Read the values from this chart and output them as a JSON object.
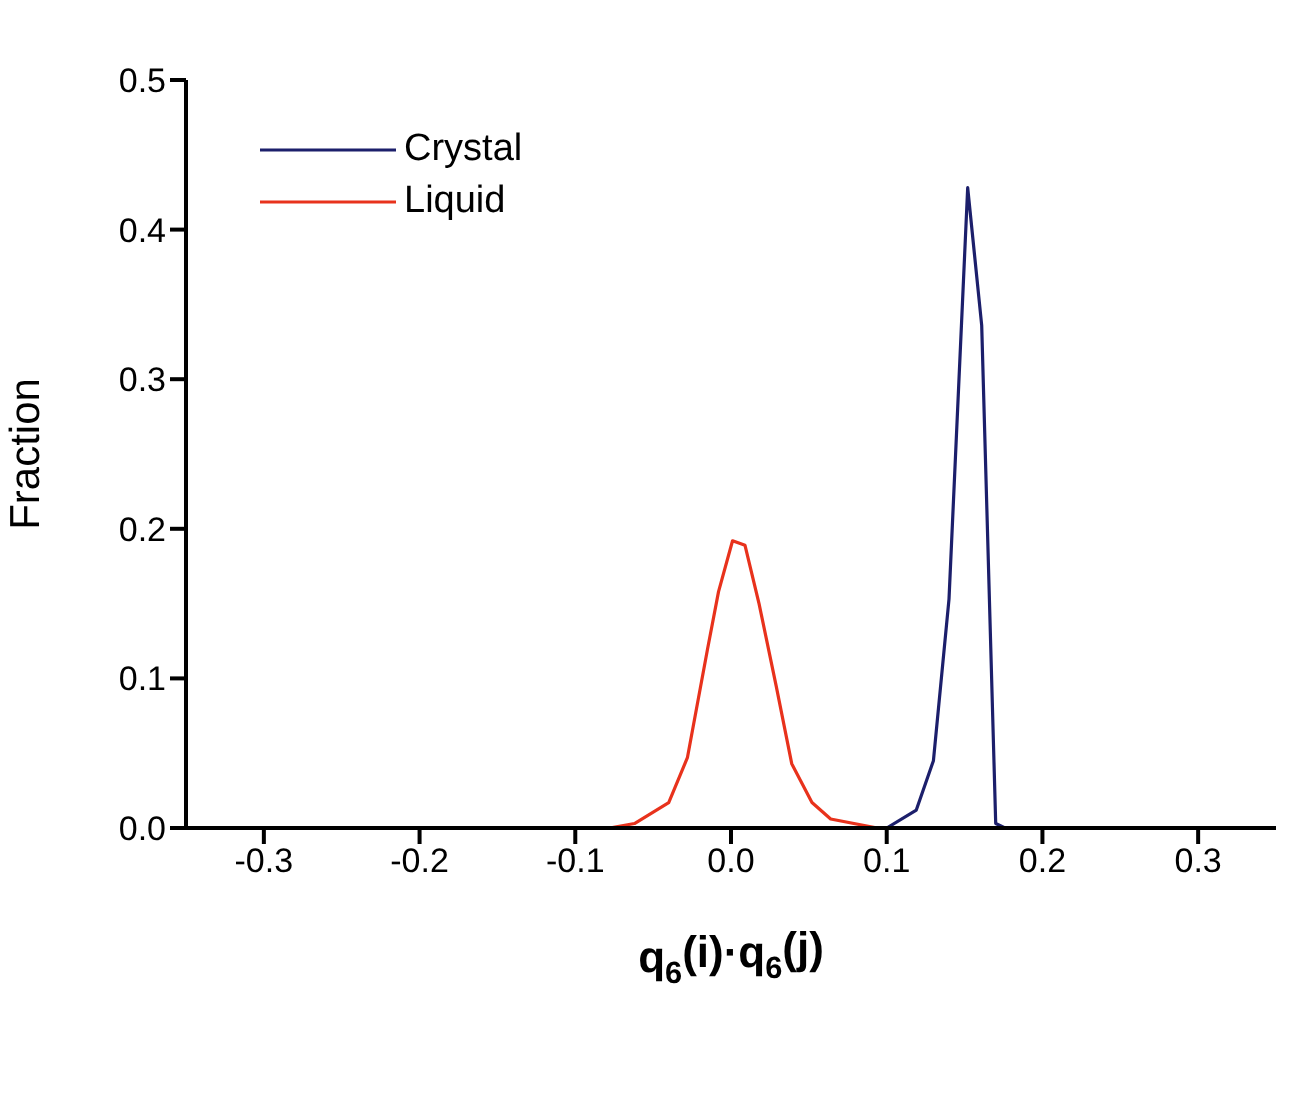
{
  "chart_data": {
    "type": "line",
    "xlabel": "q$_{6}$(i)·q$_{6}$(j)",
    "ylabel": "Fraction",
    "xlim": [
      -0.35,
      0.35
    ],
    "xticks": [
      {
        "value": -0.3,
        "label": "-0.3"
      },
      {
        "value": -0.2,
        "label": "-0.2"
      },
      {
        "value": -0.1,
        "label": "-0.1"
      },
      {
        "value": 0,
        "label": "0.0"
      },
      {
        "value": 0.1,
        "label": "0.1"
      },
      {
        "value": 0.2,
        "label": "0.2"
      },
      {
        "value": 0.3,
        "label": "0.3"
      }
    ],
    "ylim": [
      0,
      0.5
    ],
    "yticks": [
      {
        "value": 0,
        "label": "0.0"
      },
      {
        "value": 0.1,
        "label": "0.1"
      },
      {
        "value": 0.2,
        "label": "0.2"
      },
      {
        "value": 0.3,
        "label": "0.3"
      },
      {
        "value": 0.4,
        "label": "0.4"
      },
      {
        "value": 0.5,
        "label": "0.5"
      }
    ],
    "legend": "top left",
    "grid": false,
    "marker": "none",
    "line_style": "solid",
    "series": [
      {
        "name": "Crystal",
        "color": "#1c1f6b",
        "x": [
          0.1,
          0.119,
          0.13,
          0.14,
          0.152,
          0.161,
          0.17,
          0.176
        ],
        "values": [
          0,
          0.012,
          0.045,
          0.153,
          0.428,
          0.336,
          0.003,
          0
        ]
      },
      {
        "name": "Liquid",
        "color": "#e8321c",
        "x": [
          -0.078,
          -0.062,
          -0.04,
          -0.028,
          -0.015,
          -0.008,
          0.001,
          0.009,
          0.018,
          0.029,
          0.039,
          0.052,
          0.064,
          0.094
        ],
        "values": [
          0,
          0.003,
          0.017,
          0.047,
          0.12,
          0.158,
          0.192,
          0.189,
          0.15,
          0.095,
          0.043,
          0.017,
          0.006,
          0
        ]
      }
    ]
  }
}
